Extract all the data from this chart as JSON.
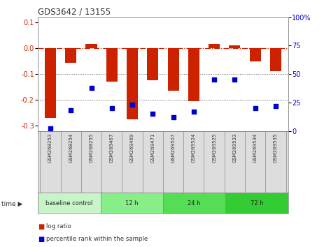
{
  "title": "GDS3642 / 13155",
  "samples": [
    "GSM268253",
    "GSM268254",
    "GSM268255",
    "GSM269467",
    "GSM269469",
    "GSM269471",
    "GSM269507",
    "GSM269524",
    "GSM269525",
    "GSM269533",
    "GSM269534",
    "GSM269535"
  ],
  "log_ratio": [
    -0.27,
    -0.055,
    0.018,
    -0.13,
    -0.275,
    -0.125,
    -0.165,
    -0.205,
    0.018,
    0.01,
    -0.05,
    -0.09
  ],
  "percentile_rank": [
    2,
    18,
    38,
    20,
    23,
    15,
    12,
    17,
    45,
    45,
    20,
    22
  ],
  "groups": [
    {
      "label": "baseline control",
      "start": 0,
      "end": 3
    },
    {
      "label": "12 h",
      "start": 3,
      "end": 6
    },
    {
      "label": "24 h",
      "start": 6,
      "end": 9
    },
    {
      "label": "72 h",
      "start": 9,
      "end": 12
    }
  ],
  "group_colors": [
    "#c8f5c8",
    "#88ee88",
    "#55dd55",
    "#33cc33"
  ],
  "bar_color": "#cc2200",
  "dot_color": "#0000cc",
  "ylim_left": [
    -0.32,
    0.12
  ],
  "ylim_right": [
    0,
    100
  ],
  "yticks_left": [
    -0.3,
    -0.2,
    -0.1,
    0.0,
    0.1
  ],
  "yticks_right": [
    0,
    25,
    50,
    75,
    100
  ],
  "background_color": "#ffffff"
}
